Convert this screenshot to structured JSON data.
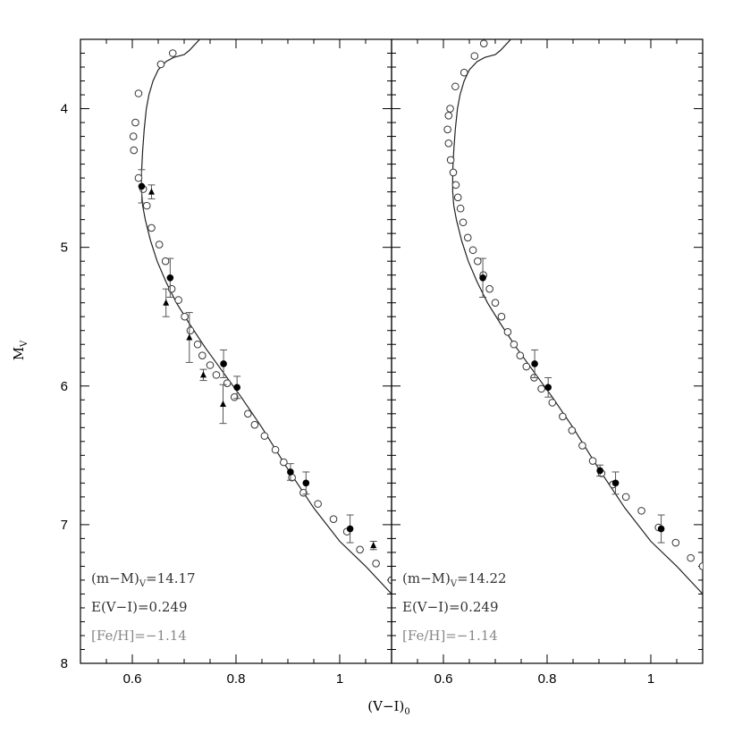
{
  "chart_data": {
    "type": "scatter",
    "x_axis_label": "(V−I)",
    "x_axis_label_sub": "0",
    "y_axis_label": "M",
    "y_axis_label_sub": "V",
    "xlim": [
      0.5,
      1.1
    ],
    "ylim": [
      8.0,
      3.5
    ],
    "xticks": [
      0.6,
      0.8,
      1.0
    ],
    "xtick_labels": [
      "0.6",
      "0.8",
      "1"
    ],
    "yticks": [
      4,
      5,
      6,
      7,
      8
    ],
    "ytick_labels": [
      "4",
      "5",
      "6",
      "7",
      "8"
    ],
    "panels": [
      {
        "id": "left",
        "annotations": [
          {
            "text": "(m−M)",
            "sub": "V",
            "suffix": "=14.17",
            "color": "#333333"
          },
          {
            "text": "E(V−I)=0.249",
            "color": "#333333"
          },
          {
            "text": "[Fe/H]=−1.14",
            "color": "#888888"
          }
        ],
        "isochrone": [
          [
            0.73,
            3.5
          ],
          [
            0.72,
            3.54
          ],
          [
            0.71,
            3.58
          ],
          [
            0.7,
            3.61
          ],
          [
            0.68,
            3.63
          ],
          [
            0.665,
            3.66
          ],
          [
            0.65,
            3.72
          ],
          [
            0.64,
            3.8
          ],
          [
            0.632,
            3.9
          ],
          [
            0.627,
            4.0
          ],
          [
            0.623,
            4.15
          ],
          [
            0.62,
            4.3
          ],
          [
            0.618,
            4.45
          ],
          [
            0.618,
            4.6
          ],
          [
            0.62,
            4.7
          ],
          [
            0.625,
            4.8
          ],
          [
            0.635,
            4.95
          ],
          [
            0.648,
            5.1
          ],
          [
            0.665,
            5.25
          ],
          [
            0.685,
            5.4
          ],
          [
            0.71,
            5.55
          ],
          [
            0.74,
            5.72
          ],
          [
            0.775,
            5.9
          ],
          [
            0.81,
            6.08
          ],
          [
            0.85,
            6.3
          ],
          [
            0.9,
            6.6
          ],
          [
            0.95,
            6.88
          ],
          [
            1.0,
            7.12
          ],
          [
            1.05,
            7.3
          ],
          [
            1.1,
            7.5
          ]
        ],
        "open_circles": [
          [
            0.678,
            3.6
          ],
          [
            0.655,
            3.68
          ],
          [
            0.612,
            3.89
          ],
          [
            0.606,
            4.1
          ],
          [
            0.602,
            4.2
          ],
          [
            0.603,
            4.3
          ],
          [
            0.612,
            4.5
          ],
          [
            0.621,
            4.58
          ],
          [
            0.628,
            4.7
          ],
          [
            0.637,
            4.86
          ],
          [
            0.652,
            4.98
          ],
          [
            0.664,
            5.1
          ],
          [
            0.676,
            5.3
          ],
          [
            0.689,
            5.38
          ],
          [
            0.701,
            5.5
          ],
          [
            0.712,
            5.6
          ],
          [
            0.726,
            5.7
          ],
          [
            0.735,
            5.78
          ],
          [
            0.75,
            5.85
          ],
          [
            0.762,
            5.92
          ],
          [
            0.783,
            5.98
          ],
          [
            0.797,
            6.08
          ],
          [
            0.823,
            6.2
          ],
          [
            0.836,
            6.28
          ],
          [
            0.855,
            6.36
          ],
          [
            0.876,
            6.46
          ],
          [
            0.892,
            6.55
          ],
          [
            0.908,
            6.66
          ],
          [
            0.93,
            6.77
          ],
          [
            0.958,
            6.85
          ],
          [
            0.988,
            6.96
          ],
          [
            1.014,
            7.05
          ],
          [
            1.039,
            7.18
          ],
          [
            1.07,
            7.28
          ],
          [
            1.1,
            7.4
          ]
        ],
        "filled_circles": [
          {
            "x": 0.618,
            "y": 4.56,
            "err": 0.12
          },
          {
            "x": 0.673,
            "y": 5.22,
            "err": 0.14
          },
          {
            "x": 0.776,
            "y": 5.84,
            "err": 0.1
          },
          {
            "x": 0.802,
            "y": 6.01,
            "err": 0.08
          },
          {
            "x": 0.905,
            "y": 6.62,
            "err": 0.06
          },
          {
            "x": 0.935,
            "y": 6.7,
            "err": 0.08
          },
          {
            "x": 1.02,
            "y": 7.03,
            "err": 0.1
          }
        ],
        "triangles": [
          {
            "x": 0.637,
            "y": 4.6,
            "err": 0.05
          },
          {
            "x": 0.665,
            "y": 5.4,
            "err": 0.1
          },
          {
            "x": 0.71,
            "y": 5.65,
            "err": 0.18
          },
          {
            "x": 0.737,
            "y": 5.92,
            "err": 0.04
          },
          {
            "x": 0.775,
            "y": 6.13,
            "err": 0.14
          },
          {
            "x": 1.065,
            "y": 7.15,
            "err": 0.03
          }
        ]
      },
      {
        "id": "right",
        "annotations": [
          {
            "text": "(m−M)",
            "sub": "V",
            "suffix": "=14.22",
            "color": "#333333"
          },
          {
            "text": "E(V−I)=0.249",
            "color": "#333333"
          },
          {
            "text": "[Fe/H]=−1.14",
            "color": "#888888"
          }
        ],
        "isochrone": [
          [
            0.73,
            3.5
          ],
          [
            0.72,
            3.54
          ],
          [
            0.71,
            3.58
          ],
          [
            0.7,
            3.61
          ],
          [
            0.68,
            3.63
          ],
          [
            0.665,
            3.66
          ],
          [
            0.65,
            3.72
          ],
          [
            0.64,
            3.8
          ],
          [
            0.632,
            3.9
          ],
          [
            0.627,
            4.0
          ],
          [
            0.623,
            4.15
          ],
          [
            0.62,
            4.3
          ],
          [
            0.618,
            4.45
          ],
          [
            0.618,
            4.6
          ],
          [
            0.62,
            4.7
          ],
          [
            0.625,
            4.8
          ],
          [
            0.635,
            4.95
          ],
          [
            0.648,
            5.1
          ],
          [
            0.665,
            5.25
          ],
          [
            0.685,
            5.4
          ],
          [
            0.71,
            5.55
          ],
          [
            0.74,
            5.72
          ],
          [
            0.775,
            5.9
          ],
          [
            0.81,
            6.08
          ],
          [
            0.85,
            6.3
          ],
          [
            0.9,
            6.6
          ],
          [
            0.95,
            6.88
          ],
          [
            1.0,
            7.12
          ],
          [
            1.05,
            7.3
          ],
          [
            1.1,
            7.5
          ]
        ],
        "open_circles": [
          [
            0.678,
            3.53
          ],
          [
            0.66,
            3.62
          ],
          [
            0.64,
            3.74
          ],
          [
            0.623,
            3.84
          ],
          [
            0.613,
            4.0
          ],
          [
            0.61,
            4.05
          ],
          [
            0.608,
            4.15
          ],
          [
            0.61,
            4.25
          ],
          [
            0.614,
            4.37
          ],
          [
            0.619,
            4.46
          ],
          [
            0.624,
            4.55
          ],
          [
            0.628,
            4.64
          ],
          [
            0.633,
            4.72
          ],
          [
            0.638,
            4.82
          ],
          [
            0.647,
            4.93
          ],
          [
            0.657,
            5.02
          ],
          [
            0.666,
            5.1
          ],
          [
            0.677,
            5.2
          ],
          [
            0.689,
            5.3
          ],
          [
            0.7,
            5.4
          ],
          [
            0.712,
            5.5
          ],
          [
            0.724,
            5.61
          ],
          [
            0.736,
            5.7
          ],
          [
            0.748,
            5.78
          ],
          [
            0.76,
            5.86
          ],
          [
            0.775,
            5.94
          ],
          [
            0.789,
            6.02
          ],
          [
            0.81,
            6.12
          ],
          [
            0.83,
            6.22
          ],
          [
            0.848,
            6.32
          ],
          [
            0.868,
            6.43
          ],
          [
            0.888,
            6.54
          ],
          [
            0.905,
            6.63
          ],
          [
            0.927,
            6.71
          ],
          [
            0.952,
            6.8
          ],
          [
            0.982,
            6.9
          ],
          [
            1.015,
            7.02
          ],
          [
            1.048,
            7.13
          ],
          [
            1.077,
            7.24
          ],
          [
            1.1,
            7.3
          ]
        ],
        "filled_circles": [
          {
            "x": 0.676,
            "y": 5.22,
            "err": 0.14
          },
          {
            "x": 0.776,
            "y": 5.84,
            "err": 0.1
          },
          {
            "x": 0.802,
            "y": 6.01,
            "err": 0.07
          },
          {
            "x": 0.902,
            "y": 6.61,
            "err": 0.04
          },
          {
            "x": 0.932,
            "y": 6.7,
            "err": 0.08
          },
          {
            "x": 1.02,
            "y": 7.03,
            "err": 0.1
          }
        ],
        "triangles": []
      }
    ]
  }
}
